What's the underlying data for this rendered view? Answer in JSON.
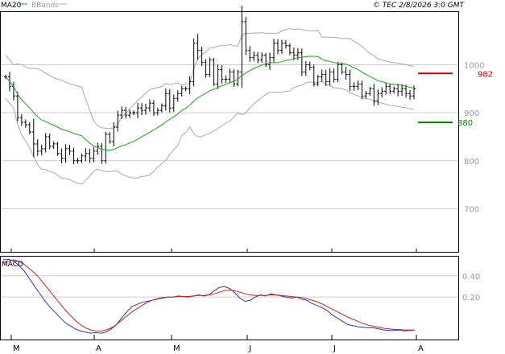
{
  "header": {
    "ma_label": "MA20",
    "bbands_label": "BBands",
    "copyright": "© TEC 2/8/2026 3:0 GMT"
  },
  "colors": {
    "ma": "#1aa31a",
    "bbands": "#a9a9a9",
    "price_bars": "#000000",
    "macd_line": "#2b34c8",
    "signal_line": "#d42020",
    "resistance": "#cc0000",
    "support": "#008800",
    "grid": "#cccccc",
    "axis_text": "#999999"
  },
  "chart_data": [
    {
      "type": "ohlc",
      "name": "price-panel",
      "ylim": [
        610,
        1110
      ],
      "y_ticks": [
        {
          "value": 1000,
          "label": "1000"
        },
        {
          "value": 900,
          "label": "900"
        },
        {
          "value": 800,
          "label": "800"
        },
        {
          "value": 700,
          "label": "700"
        }
      ],
      "levels": [
        {
          "value": 982,
          "label": "982",
          "kind": "resistance"
        },
        {
          "value": 880,
          "label": "880",
          "kind": "support"
        }
      ],
      "close": [
        975,
        955,
        935,
        890,
        880,
        875,
        860,
        835,
        820,
        825,
        850,
        830,
        835,
        815,
        805,
        825,
        820,
        800,
        800,
        810,
        815,
        805,
        820,
        830,
        800,
        855,
        840,
        870,
        895,
        905,
        895,
        900,
        900,
        910,
        905,
        910,
        920,
        900,
        905,
        915,
        940,
        910,
        930,
        940,
        950,
        950,
        965,
        1045,
        1030,
        1005,
        980,
        1010,
        960,
        990,
        970,
        970,
        985,
        960,
        985,
        1090,
        1030,
        1015,
        1020,
        1010,
        1020,
        1000,
        1015,
        1045,
        1030,
        1045,
        1040,
        1025,
        1020,
        1025,
        985,
        1000,
        995,
        960,
        975,
        980,
        965,
        985,
        970,
        1000,
        985,
        980,
        955,
        955,
        960,
        935,
        940,
        950,
        925,
        940,
        945,
        955,
        945,
        950,
        945,
        950,
        940,
        935,
        950
      ],
      "x_ticks": [
        "M",
        "A",
        "M",
        "J",
        "J",
        "A"
      ]
    },
    {
      "type": "line",
      "name": "macd-panel",
      "title": "MACD",
      "ylim": [
        -0.2,
        0.58
      ],
      "y_ticks": [
        {
          "value": 0.4,
          "label": "0.40"
        },
        {
          "value": 0.2,
          "label": "0.20"
        }
      ],
      "series": [
        {
          "values": [
            0.55,
            0.555,
            0.54,
            0.5,
            0.45,
            0.38,
            0.31,
            0.24,
            0.17,
            0.11,
            0.06,
            0.01,
            -0.04,
            -0.07,
            -0.1,
            -0.12,
            -0.13,
            -0.14,
            -0.135,
            -0.14,
            -0.13,
            -0.1,
            -0.06,
            0.0,
            0.06,
            0.11,
            0.13,
            0.15,
            0.16,
            0.17,
            0.18,
            0.19,
            0.2,
            0.2,
            0.21,
            0.205,
            0.2,
            0.21,
            0.22,
            0.21,
            0.22,
            0.26,
            0.29,
            0.3,
            0.28,
            0.24,
            0.19,
            0.16,
            0.17,
            0.2,
            0.22,
            0.21,
            0.23,
            0.22,
            0.21,
            0.2,
            0.19,
            0.2,
            0.18,
            0.17,
            0.14,
            0.12,
            0.1,
            0.07,
            0.03,
            0.0,
            -0.03,
            -0.06,
            -0.07,
            -0.08,
            -0.085,
            -0.09,
            -0.09,
            -0.1,
            -0.11,
            -0.115,
            -0.115,
            -0.11,
            -0.12,
            -0.115,
            -0.11
          ]
        },
        {
          "values": [
            0.52,
            0.54,
            0.55,
            0.54,
            0.51,
            0.47,
            0.43,
            0.38,
            0.32,
            0.26,
            0.2,
            0.14,
            0.08,
            0.03,
            -0.02,
            -0.06,
            -0.09,
            -0.11,
            -0.12,
            -0.12,
            -0.11,
            -0.09,
            -0.06,
            -0.02,
            0.02,
            0.06,
            0.09,
            0.12,
            0.15,
            0.17,
            0.185,
            0.195,
            0.2,
            0.2,
            0.205,
            0.205,
            0.205,
            0.21,
            0.215,
            0.215,
            0.22,
            0.23,
            0.245,
            0.26,
            0.265,
            0.26,
            0.245,
            0.23,
            0.22,
            0.215,
            0.215,
            0.215,
            0.22,
            0.22,
            0.215,
            0.21,
            0.205,
            0.2,
            0.195,
            0.185,
            0.17,
            0.155,
            0.135,
            0.11,
            0.085,
            0.06,
            0.035,
            0.01,
            -0.01,
            -0.03,
            -0.05,
            -0.065,
            -0.075,
            -0.085,
            -0.095,
            -0.1,
            -0.105,
            -0.105,
            -0.11,
            -0.11,
            -0.11
          ]
        }
      ],
      "x_ticks": [
        "M",
        "A",
        "M",
        "J",
        "J",
        "A"
      ]
    }
  ]
}
